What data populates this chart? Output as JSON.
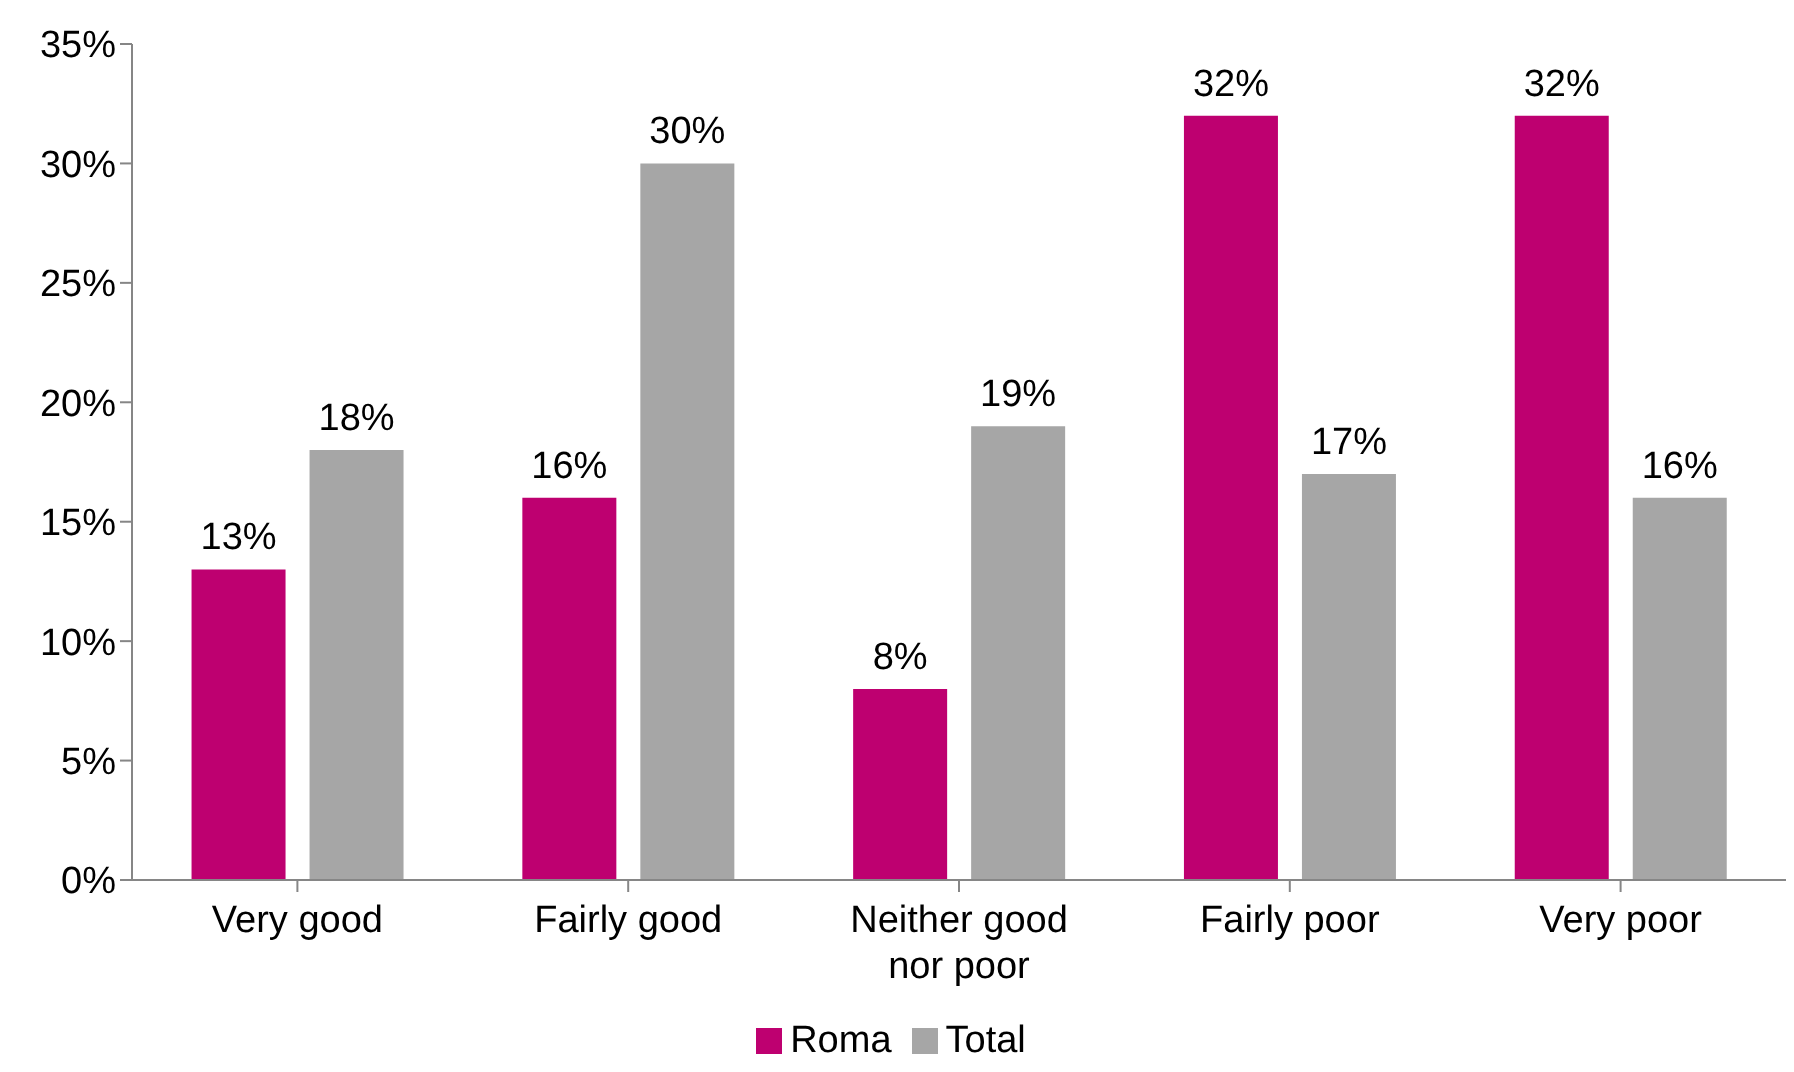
{
  "chart_data": {
    "type": "bar",
    "categories": [
      "Very good",
      "Fairly good",
      "Neither good nor poor",
      "Fairly poor",
      "Very poor"
    ],
    "series": [
      {
        "name": "Roma",
        "color": "#be0070",
        "values": [
          13,
          16,
          8,
          32,
          32
        ],
        "value_labels": [
          "13%",
          "16%",
          "8%",
          "32%",
          "32%"
        ]
      },
      {
        "name": "Total",
        "color": "#a6a6a6",
        "values": [
          18,
          30,
          19,
          17,
          16
        ],
        "value_labels": [
          "18%",
          "30%",
          "19%",
          "17%",
          "16%"
        ]
      }
    ],
    "ylim": [
      0,
      35
    ],
    "yticks": [
      {
        "value": 0,
        "label": "0%"
      },
      {
        "value": 5,
        "label": "5%"
      },
      {
        "value": 10,
        "label": "10%"
      },
      {
        "value": 15,
        "label": "15%"
      },
      {
        "value": 20,
        "label": "20%"
      },
      {
        "value": 25,
        "label": "25%"
      },
      {
        "value": 30,
        "label": "30%"
      },
      {
        "value": 35,
        "label": "35%"
      }
    ],
    "grid": false,
    "legend": "bottom"
  }
}
